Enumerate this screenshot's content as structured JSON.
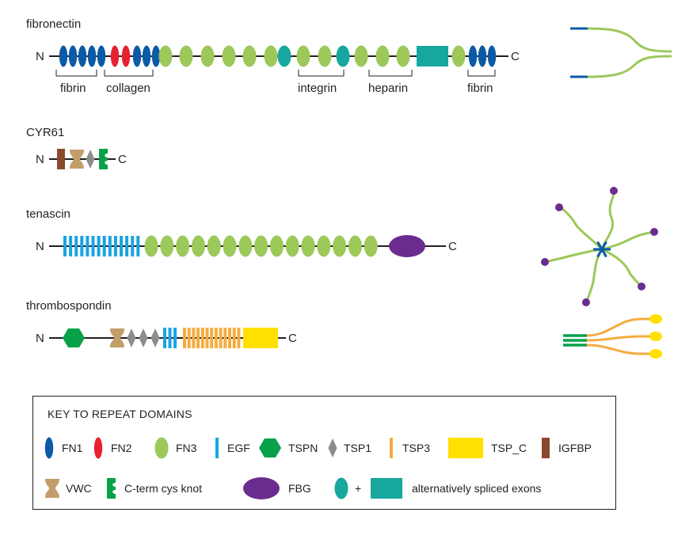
{
  "colors": {
    "FN1": "#0b5aa6",
    "FN2": "#e8212f",
    "FN3": "#9dc85a",
    "EGF": "#1ba3e3",
    "TSPN": "#07a14a",
    "TSP1": "#8c8c8c",
    "TSP3": "#f5ac3f",
    "TSP_C": "#ffe000",
    "IGFBP": "#8a4a2c",
    "VWC": "#c29e6a",
    "CTCK": "#07a14a",
    "FBG": "#6b2c8f",
    "ALT": "#17a79f",
    "line": "#231f20"
  },
  "proteins": {
    "fibronectin": {
      "name": "fibronectin",
      "n_term": "N",
      "c_term": "C",
      "domains": [
        "FN1",
        "FN1",
        "FN1",
        "FN1",
        "FN1",
        "FN2",
        "FN2",
        "FN1",
        "FN1",
        "FN1",
        "FN3",
        "FN3",
        "FN3",
        "FN3",
        "FN3",
        "FN3",
        "FN3",
        "ALT-oval",
        "FN3",
        "FN3",
        "FN3",
        "ALT-oval",
        "FN3",
        "FN3",
        "FN3",
        "ALT-rect",
        "FN3",
        "FN1",
        "FN1",
        "FN1"
      ],
      "binding": [
        "fibrin",
        "collagen",
        "integrin",
        "heparin",
        "fibrin"
      ]
    },
    "cyr61": {
      "name": "CYR61",
      "n_term": "N",
      "c_term": "C",
      "domains": [
        "IGFBP",
        "VWC",
        "TSP1",
        "CTCK"
      ]
    },
    "tenascin": {
      "name": "tenascin",
      "n_term": "N",
      "c_term": "C",
      "domains": [
        "EGF x14",
        "FN3 x15",
        "FBG"
      ]
    },
    "thrombospondin": {
      "name": "thrombospondin",
      "n_term": "N",
      "c_term": "C",
      "domains": [
        "TSPN",
        "VWC",
        "TSP1",
        "TSP1",
        "TSP1",
        "EGF x3",
        "TSP3 x13",
        "TSP_C"
      ]
    }
  },
  "key": {
    "title": "KEY TO REPEAT DOMAINS",
    "items": [
      "FN1",
      "FN2",
      "FN3",
      "EGF",
      "TSPN",
      "TSP1",
      "TSP3",
      "TSP_C",
      "IGFBP",
      "VWC",
      "C-term cys knot",
      "FBG"
    ],
    "alt_plus": "+",
    "alt_label": "alternatively spliced exons"
  },
  "assemblies": {
    "fibronectin": "dimer",
    "tenascin": "hexamer",
    "thrombospondin": "trimer"
  }
}
